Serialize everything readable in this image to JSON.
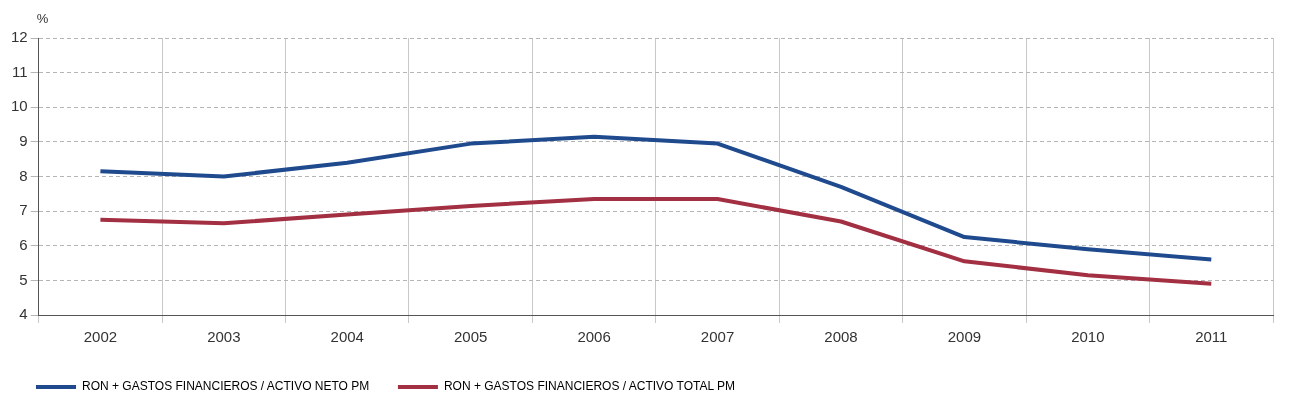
{
  "chart_data": {
    "type": "line",
    "ylabel": "%",
    "categories": [
      "2002",
      "2003",
      "2004",
      "2005",
      "2006",
      "2007",
      "2008",
      "2009",
      "2010",
      "2011"
    ],
    "series": [
      {
        "name": "RON + GASTOS FINANCIEROS / ACTIVO NETO PM",
        "color": "#1f4a8e",
        "values": [
          8.15,
          8.0,
          8.4,
          8.95,
          9.15,
          8.95,
          7.7,
          6.25,
          5.9,
          5.6
        ]
      },
      {
        "name": "RON + GASTOS FINANCIEROS / ACTIVO TOTAL PM",
        "color": "#a32f42",
        "values": [
          6.75,
          6.65,
          6.9,
          7.15,
          7.35,
          7.35,
          6.7,
          5.55,
          5.15,
          4.9
        ]
      }
    ],
    "ylim": [
      4,
      12
    ],
    "yticks": [
      4,
      5,
      6,
      7,
      8,
      9,
      10,
      11,
      12
    ],
    "grid": true,
    "legend": "bottom left",
    "marker": "none",
    "line_style": "solid"
  }
}
